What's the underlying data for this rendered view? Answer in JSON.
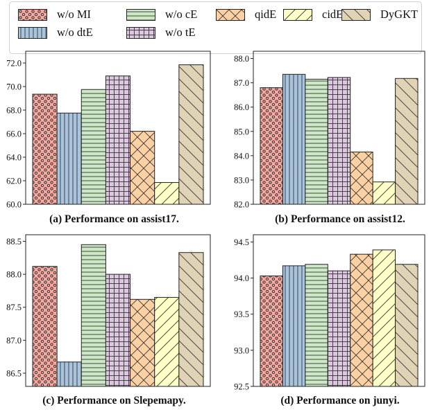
{
  "legend": [
    {
      "name": "w/o MI",
      "color": "#f4a9a1",
      "pattern": "dots"
    },
    {
      "name": "w/o dtE",
      "color": "#a9c5de",
      "pattern": "vlines"
    },
    {
      "name": "w/o cE",
      "color": "#cce8c4",
      "pattern": "hlines"
    },
    {
      "name": "w/o tE",
      "color": "#dcc6e0",
      "pattern": "grid"
    },
    {
      "name": "qidE",
      "color": "#fdd1a3",
      "pattern": "cross"
    },
    {
      "name": "cidE",
      "color": "#fdfdc8",
      "pattern": "fslash"
    },
    {
      "name": "DyGKT",
      "color": "#e0d3b6",
      "pattern": "bslash"
    }
  ],
  "chart_data": [
    {
      "type": "bar",
      "title": "(a) Performance on assist17.",
      "categories": [
        "w/o MI",
        "w/o dtE",
        "w/o cE",
        "w/o tE",
        "qidE",
        "cidE",
        "DyGKT"
      ],
      "values": [
        69.35,
        67.75,
        69.75,
        70.9,
        66.2,
        61.85,
        71.85
      ],
      "ylim": [
        60,
        73
      ],
      "yticks": [
        "60.0",
        "62.0",
        "64.0",
        "66.0",
        "68.0",
        "70.0",
        "72.0"
      ],
      "ytick_values": [
        60,
        62,
        64,
        66,
        68,
        70,
        72
      ]
    },
    {
      "type": "bar",
      "title": "(b) Performance on assist12.",
      "categories": [
        "w/o MI",
        "w/o dtE",
        "w/o cE",
        "w/o tE",
        "qidE",
        "cidE",
        "DyGKT"
      ],
      "values": [
        86.8,
        87.35,
        87.15,
        87.22,
        84.15,
        82.92,
        87.18
      ],
      "ylim": [
        82,
        88.3
      ],
      "yticks": [
        "82.0",
        "83.0",
        "84.0",
        "85.0",
        "86.0",
        "87.0",
        "88.0"
      ],
      "ytick_values": [
        82,
        83,
        84,
        85,
        86,
        87,
        88
      ]
    },
    {
      "type": "bar",
      "title": "(c) Performance on Slepemapy.",
      "categories": [
        "w/o MI",
        "w/o dtE",
        "w/o cE",
        "w/o tE",
        "qidE",
        "cidE",
        "DyGKT"
      ],
      "values": [
        88.12,
        86.67,
        88.45,
        88.0,
        87.62,
        87.65,
        88.33
      ],
      "ylim": [
        86.3,
        88.6
      ],
      "yticks": [
        "86.5",
        "87.0",
        "87.5",
        "88.0",
        "88.5"
      ],
      "ytick_values": [
        86.5,
        87.0,
        87.5,
        88.0,
        88.5
      ]
    },
    {
      "type": "bar",
      "title": "(d) Performance on junyi.",
      "categories": [
        "w/o MI",
        "w/o dtE",
        "w/o cE",
        "w/o tE",
        "qidE",
        "cidE",
        "DyGKT"
      ],
      "values": [
        94.03,
        94.17,
        94.19,
        94.1,
        94.33,
        94.39,
        94.19
      ],
      "ylim": [
        92.5,
        94.6
      ],
      "yticks": [
        "92.5",
        "93.0",
        "93.5",
        "94.0",
        "94.5"
      ],
      "ytick_values": [
        92.5,
        93.0,
        93.5,
        94.0,
        94.5
      ]
    }
  ]
}
